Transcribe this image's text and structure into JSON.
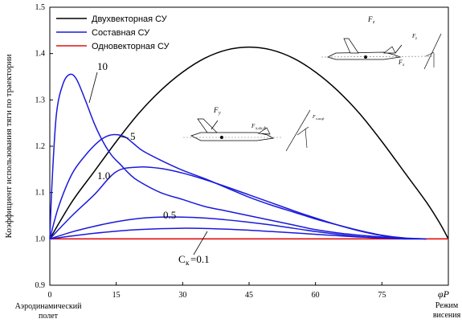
{
  "chart_data": {
    "type": "line",
    "ylabel": "Коэффициент использования тяги по траектории",
    "xlabel_symbol": "φP",
    "x_left_label_line1": "Аэродинамический",
    "x_left_label_line2": "полет",
    "x_right_label_line1": "Режим",
    "x_right_label_line2": "висения",
    "xlim": [
      0,
      90
    ],
    "ylim": [
      0.9,
      1.5
    ],
    "x_ticks": [
      "0",
      "15",
      "30",
      "45",
      "60",
      "75"
    ],
    "y_ticks": [
      "0.9",
      "1.0",
      "1.1",
      "1.2",
      "1.3",
      "1.4",
      "1.5"
    ],
    "legend": [
      {
        "label": "Двухвекторная СУ",
        "color": "#000000"
      },
      {
        "label": "Составная СУ",
        "color": "#1a1adb"
      },
      {
        "label": "Одновекторная СУ",
        "color": "#e01010"
      }
    ],
    "curve_labels": {
      "c10": "10",
      "c5": "5",
      "c1": "1.0",
      "c05": "0.5",
      "ck_prefix": "C",
      "ck_sub": "к",
      "ck_value": "=0.1"
    },
    "series": [
      {
        "name": "Двухвекторная СУ",
        "color": "#000000",
        "x": [
          0,
          5,
          10,
          15,
          20,
          25,
          30,
          35,
          40,
          45,
          50,
          55,
          60,
          65,
          70,
          75,
          80,
          85,
          88,
          90
        ],
        "y": [
          1.0,
          1.08,
          1.145,
          1.21,
          1.27,
          1.32,
          1.36,
          1.39,
          1.408,
          1.414,
          1.408,
          1.39,
          1.36,
          1.32,
          1.27,
          1.21,
          1.145,
          1.08,
          1.035,
          1.0
        ]
      },
      {
        "name": "Одновекторная СУ",
        "color": "#e01010",
        "x": [
          0,
          90
        ],
        "y": [
          1.0,
          1.0
        ]
      },
      {
        "name": "10",
        "color": "#1a1adb",
        "x": [
          0,
          0.5,
          1.5,
          3,
          4.5,
          6,
          8,
          10,
          12,
          14,
          16,
          18,
          20,
          25,
          30,
          35,
          40,
          45,
          50,
          55,
          60,
          65,
          70,
          75,
          80,
          85
        ],
        "y": [
          1.0,
          1.12,
          1.27,
          1.335,
          1.355,
          1.345,
          1.3,
          1.25,
          1.21,
          1.18,
          1.16,
          1.14,
          1.125,
          1.1,
          1.085,
          1.07,
          1.06,
          1.05,
          1.04,
          1.03,
          1.02,
          1.013,
          1.008,
          1.004,
          1.001,
          1.0
        ]
      },
      {
        "name": "5",
        "color": "#1a1adb",
        "x": [
          0,
          2,
          5,
          8,
          11,
          13,
          15,
          17,
          19,
          21,
          25,
          30,
          35,
          40,
          45,
          50,
          55,
          60,
          65,
          70,
          75,
          80,
          85
        ],
        "y": [
          1.0,
          1.07,
          1.14,
          1.18,
          1.21,
          1.222,
          1.225,
          1.22,
          1.205,
          1.19,
          1.17,
          1.148,
          1.13,
          1.11,
          1.09,
          1.073,
          1.058,
          1.043,
          1.03,
          1.018,
          1.008,
          1.002,
          1.0
        ]
      },
      {
        "name": "1.0",
        "color": "#1a1adb",
        "x": [
          0,
          5,
          10,
          15,
          20,
          25,
          30,
          35,
          40,
          45,
          50,
          55,
          60,
          65,
          70,
          75,
          80,
          85
        ],
        "y": [
          1.0,
          1.05,
          1.095,
          1.145,
          1.155,
          1.152,
          1.142,
          1.128,
          1.112,
          1.095,
          1.078,
          1.061,
          1.045,
          1.03,
          1.017,
          1.007,
          1.001,
          1.0
        ]
      },
      {
        "name": "0.5",
        "color": "#1a1adb",
        "x": [
          0,
          5,
          10,
          15,
          20,
          25,
          30,
          35,
          40,
          45,
          50,
          55,
          60,
          65,
          70,
          75,
          80,
          85
        ],
        "y": [
          1.0,
          1.015,
          1.027,
          1.037,
          1.044,
          1.047,
          1.047,
          1.045,
          1.041,
          1.036,
          1.03,
          1.023,
          1.016,
          1.01,
          1.005,
          1.002,
          1.0,
          1.0
        ]
      },
      {
        "name": "0.1",
        "color": "#1a1adb",
        "x": [
          0,
          10,
          20,
          30,
          40,
          50,
          60,
          70,
          80,
          85
        ],
        "y": [
          1.0,
          1.012,
          1.02,
          1.023,
          1.021,
          1.016,
          1.01,
          1.004,
          1.001,
          1.0
        ]
      }
    ],
    "grid": false,
    "legend_position": "top-left"
  },
  "inset_labels": {
    "top_force": "F",
    "top_force_sub": "z",
    "mid_force": "F",
    "mid_force_sub": "y",
    "mid_axial": "F",
    "mid_axial_sub": "x,ах,ф",
    "mid_vec_label": "F",
    "mid_vec_label_sub": "x,ах,ф",
    "top_vec_label": "F",
    "top_vec_label_sub": "x",
    "top_vec_label2": "F",
    "top_vec_label2_sub": "z"
  }
}
